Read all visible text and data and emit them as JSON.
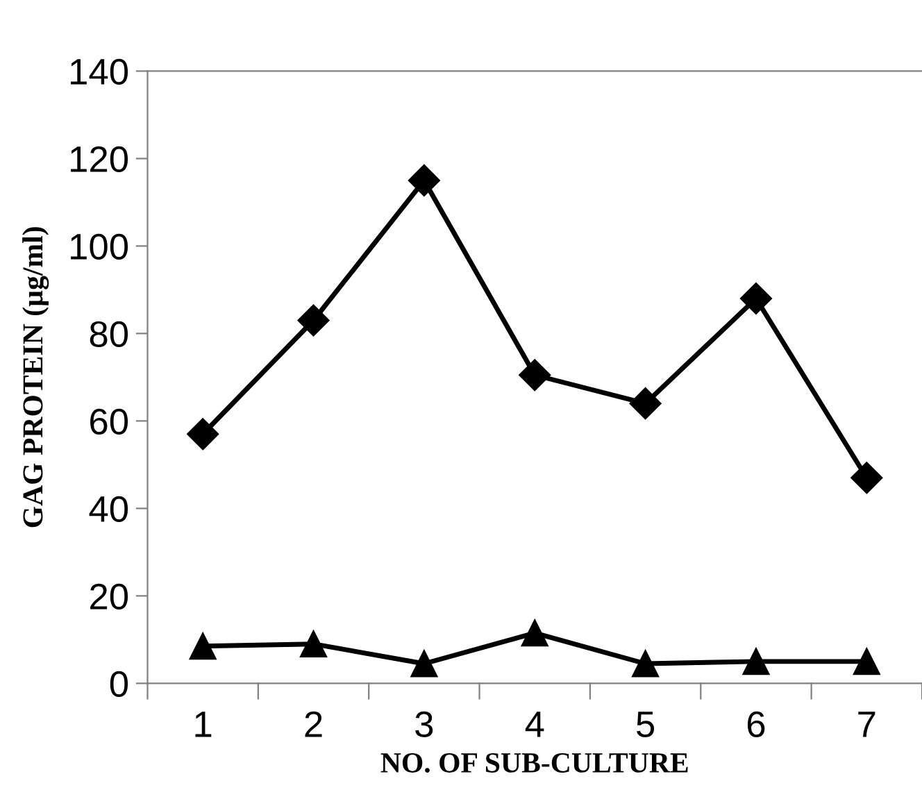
{
  "chart_data": {
    "type": "line",
    "xlabel": "NO. OF SUB-CULTURE",
    "ylabel": "GAG PROTEIN (µg/ml)",
    "categories": [
      "1",
      "2",
      "3",
      "4",
      "5",
      "6",
      "7"
    ],
    "series": [
      {
        "color": "#000000",
        "marker": "diamond",
        "values": [
          57,
          83,
          115,
          70.5,
          64,
          88,
          47
        ]
      },
      {
        "color": "#000000",
        "marker": "triangle",
        "values": [
          8.5,
          9,
          4.5,
          11.5,
          4.5,
          5,
          5
        ]
      }
    ],
    "ylim": [
      0,
      140
    ],
    "yticks": [
      0,
      20,
      40,
      60,
      80,
      100,
      120,
      140
    ],
    "grid": false,
    "legend": false,
    "line_style": "solid"
  }
}
